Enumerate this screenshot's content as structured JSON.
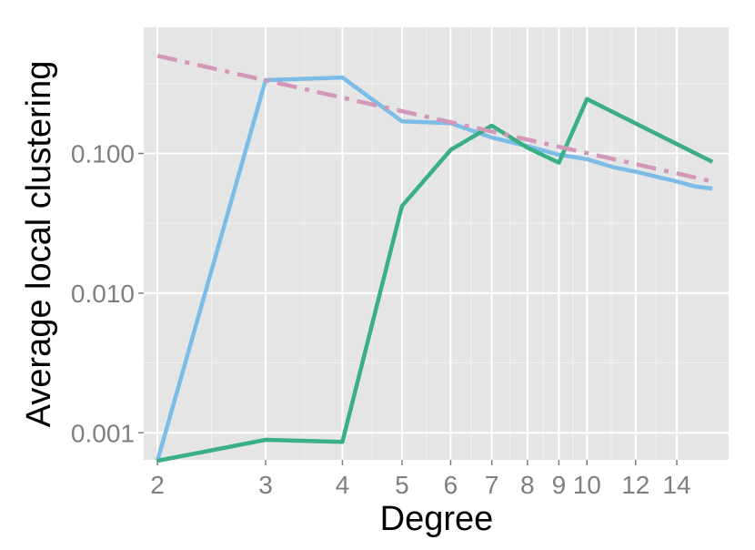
{
  "chart_data": {
    "type": "line",
    "title": "",
    "xlabel": "Degree",
    "ylabel": "Average local clustering",
    "x_scale": "log",
    "y_scale": "log",
    "xlim": [
      1.9,
      17
    ],
    "ylim": [
      0.00064,
      0.8
    ],
    "grid": true,
    "legend": "none",
    "x_major_ticks": [
      2,
      3,
      4,
      5,
      6,
      7,
      8,
      9,
      10,
      12,
      14
    ],
    "x_tick_labels": [
      "2",
      "3",
      "4",
      "5",
      "6",
      "7",
      "8",
      "9",
      "10",
      "12",
      "14"
    ],
    "y_major_ticks": [
      0.001,
      0.01,
      0.1
    ],
    "y_tick_labels": [
      "0.001",
      "0.010",
      "0.100"
    ],
    "series": [
      {
        "color": "#7bbde6",
        "style": "solid",
        "x": [
          2,
          3,
          4,
          5,
          6,
          7,
          8,
          9,
          10,
          11,
          12,
          13,
          14,
          15,
          16
        ],
        "y": [
          0.00063,
          0.335,
          0.35,
          0.17,
          0.165,
          0.13,
          0.113,
          0.098,
          0.091,
          0.08,
          0.074,
          0.068,
          0.063,
          0.058,
          0.056
        ]
      },
      {
        "color": "#3aaf85",
        "style": "solid",
        "x": [
          2,
          3,
          4,
          5,
          6,
          7,
          8,
          9,
          10,
          16
        ],
        "y": [
          0.00063,
          0.00089,
          0.00086,
          0.042,
          0.106,
          0.158,
          0.11,
          0.086,
          0.245,
          0.087
        ]
      },
      {
        "color": "#d297b9",
        "style": "dashdot",
        "x": [
          2,
          16
        ],
        "y": [
          0.5,
          0.063
        ]
      }
    ]
  }
}
